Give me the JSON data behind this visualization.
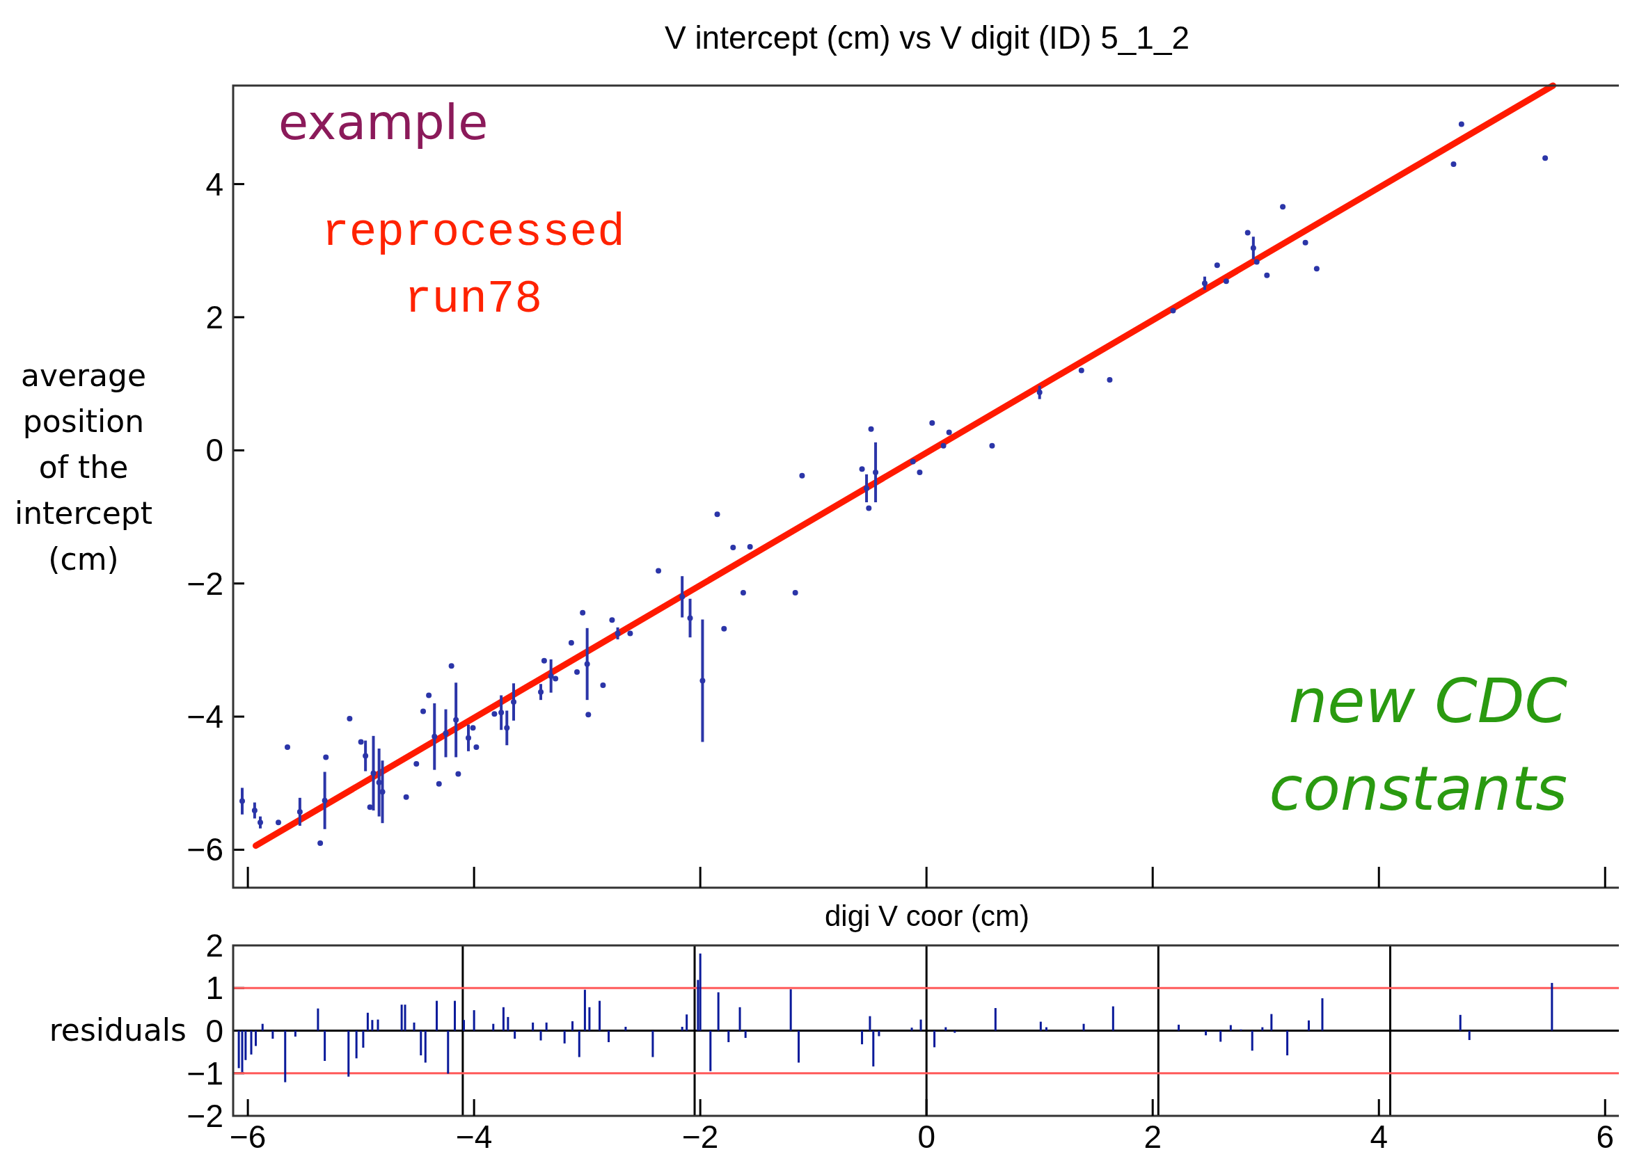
{
  "chart_data": [
    {
      "type": "scatter",
      "title": "V intercept (cm) vs V digit (ID) 5_1_2",
      "xlabel": "digi V coor (cm)",
      "ylabel": "average position of the intercept (cm)",
      "xlim": [
        -6.13,
        6.14
      ],
      "ylim": [
        -6.57,
        5.48
      ],
      "xticks": [
        {
          "value": -6,
          "label": null
        },
        {
          "value": -4,
          "label": null
        },
        {
          "value": -2,
          "label": null
        },
        {
          "value": 0,
          "label": null
        },
        {
          "value": 2,
          "label": null
        },
        {
          "value": 4,
          "label": null
        },
        {
          "value": 6,
          "label": null
        }
      ],
      "yticks": [
        -6,
        -4,
        -2,
        0,
        2,
        4
      ],
      "tick_labels": "y",
      "annotations": [
        "example",
        "reprocessed\nrun78",
        "new CDC\nconstants"
      ],
      "series": [
        {
          "type": "scatter",
          "color": "#2b35a8",
          "x": [
            -6.05,
            -5.94,
            -5.89,
            -5.73,
            -5.65,
            -5.54,
            -5.36,
            -5.32,
            -5.31,
            -5.1,
            -5.0,
            -4.96,
            -4.92,
            -4.89,
            -4.84,
            -4.81,
            -4.6,
            -4.51,
            -4.45,
            -4.4,
            -4.35,
            -4.31,
            -4.25,
            -4.2,
            -4.16,
            -4.14,
            -4.05,
            -4.01,
            -3.98,
            -3.82,
            -3.76,
            -3.71,
            -3.65,
            -3.41,
            -3.38,
            -3.32,
            -3.28,
            -3.14,
            -3.09,
            -3.04,
            -3.0,
            -2.99,
            -2.86,
            -2.78,
            -2.73,
            -2.62,
            -2.37,
            -2.16,
            -2.09,
            -1.98,
            -1.85,
            -1.79,
            -1.71,
            -1.56,
            -1.62,
            -1.16,
            -1.1,
            -0.57,
            -0.53,
            -0.51,
            -0.49,
            -0.45,
            -0.12,
            -0.06,
            0.05,
            0.15,
            0.2,
            0.58,
            1.0,
            1.37,
            1.62,
            2.18,
            2.46,
            2.57,
            2.65,
            2.84,
            2.89,
            2.92,
            3.01,
            3.15,
            3.35,
            3.45,
            4.66,
            4.73,
            5.47
          ],
          "values": [
            -5.27,
            -5.41,
            -5.59,
            -5.59,
            -4.46,
            -5.43,
            -5.9,
            -5.26,
            -4.61,
            -4.03,
            -4.38,
            -4.59,
            -5.36,
            -4.85,
            -4.99,
            -5.13,
            -5.21,
            -4.71,
            -3.92,
            -3.68,
            -4.3,
            -5.01,
            -4.25,
            -3.24,
            -4.05,
            -4.86,
            -4.32,
            -4.17,
            -4.46,
            -3.96,
            -3.94,
            -4.17,
            -3.78,
            -3.63,
            -3.16,
            -3.39,
            -3.43,
            -2.89,
            -3.33,
            -2.44,
            -3.21,
            -3.97,
            -3.53,
            -2.55,
            -2.75,
            -2.75,
            -1.81,
            -2.2,
            -2.52,
            -3.46,
            -0.96,
            -2.68,
            -1.46,
            -1.45,
            -2.14,
            -2.14,
            -0.38,
            -0.28,
            -0.57,
            -0.87,
            0.32,
            -0.33,
            -0.17,
            -0.33,
            0.41,
            0.07,
            0.27,
            0.07,
            0.87,
            1.2,
            1.06,
            2.1,
            2.51,
            2.78,
            2.54,
            3.27,
            3.04,
            2.83,
            2.63,
            3.66,
            3.12,
            2.73,
            4.3,
            4.9,
            4.39
          ],
          "errors": [
            0.2,
            0.12,
            0.09,
            null,
            null,
            0.21,
            null,
            0.43,
            null,
            null,
            null,
            0.23,
            null,
            0.56,
            0.51,
            0.47,
            null,
            null,
            null,
            null,
            0.5,
            null,
            0.36,
            null,
            0.56,
            null,
            0.2,
            null,
            null,
            null,
            0.26,
            0.26,
            0.28,
            0.12,
            null,
            0.25,
            null,
            null,
            null,
            null,
            0.54,
            null,
            null,
            null,
            0.09,
            null,
            null,
            0.31,
            0.29,
            0.92,
            null,
            null,
            null,
            null,
            null,
            null,
            null,
            null,
            0.21,
            null,
            null,
            0.45,
            null,
            null,
            null,
            null,
            null,
            null,
            0.1,
            null,
            null,
            null,
            0.1,
            null,
            null,
            null,
            0.17,
            null,
            null,
            null,
            null,
            null,
            null,
            null,
            null
          ]
        },
        {
          "type": "line",
          "color": "#ff1a00",
          "x": [
            -5.93,
            5.54
          ],
          "values": [
            -5.94,
            5.48
          ]
        }
      ]
    },
    {
      "type": "bar",
      "ylabel": "residuals",
      "color": "#0a1a9a",
      "xlim": [
        -6.13,
        6.14
      ],
      "ylim": [
        -2,
        2
      ],
      "xticks": [
        -6,
        -4,
        -2,
        0,
        2,
        4,
        6
      ],
      "yticks": [
        -2,
        -1,
        0,
        1,
        2
      ],
      "ref_lines": [
        {
          "axis": "x",
          "value": -4.1,
          "color": "#000000"
        },
        {
          "axis": "x",
          "value": -2.05,
          "color": "#000000"
        },
        {
          "axis": "x",
          "value": 0,
          "color": "#000000"
        },
        {
          "axis": "x",
          "value": 2.05,
          "color": "#000000"
        },
        {
          "axis": "x",
          "value": 4.1,
          "color": "#000000"
        },
        {
          "axis": "y",
          "value": 1,
          "color": "#ff5a5a"
        },
        {
          "axis": "y",
          "value": -1,
          "color": "#ff5a5a"
        },
        {
          "axis": "y",
          "value": 0,
          "color": "#000000"
        }
      ],
      "x": [
        -6.08,
        -6.05,
        -6.02,
        -5.97,
        -5.93,
        -5.87,
        -5.78,
        -5.67,
        -5.58,
        -5.38,
        -5.32,
        -5.11,
        -5.04,
        -4.98,
        -4.94,
        -4.9,
        -4.85,
        -4.64,
        -4.61,
        -4.53,
        -4.47,
        -4.43,
        -4.33,
        -4.23,
        -4.17,
        -4.09,
        -4.0,
        -3.83,
        -3.74,
        -3.7,
        -3.64,
        -3.48,
        -3.41,
        -3.36,
        -3.2,
        -3.13,
        -3.07,
        -3.02,
        -2.98,
        -2.89,
        -2.81,
        -2.66,
        -2.42,
        -2.16,
        -2.12,
        -2.02,
        -2.0,
        -1.91,
        -1.84,
        -1.75,
        -1.65,
        -1.6,
        -1.2,
        -1.13,
        -0.57,
        -0.5,
        -0.47,
        -0.42,
        -0.13,
        -0.05,
        0.07,
        0.17,
        0.25,
        0.61,
        1.01,
        1.06,
        1.39,
        1.65,
        2.23,
        2.47,
        2.6,
        2.69,
        2.78,
        2.88,
        2.97,
        3.05,
        3.19,
        3.38,
        3.5,
        4.72,
        4.8,
        5.53
      ],
      "values": [
        -0.88,
        -0.97,
        -0.69,
        -0.56,
        -0.36,
        0.16,
        -0.19,
        -1.21,
        -0.14,
        0.52,
        -0.71,
        -1.08,
        -0.65,
        -0.4,
        0.42,
        0.25,
        0.26,
        0.61,
        0.61,
        0.19,
        -0.58,
        -0.75,
        0.7,
        -1.01,
        0.7,
        0.25,
        0.48,
        0.16,
        0.55,
        0.32,
        -0.19,
        0.19,
        -0.23,
        0.19,
        -0.3,
        0.22,
        -0.62,
        0.96,
        0.55,
        0.7,
        -0.27,
        0.09,
        -0.62,
        0.09,
        0.38,
        1.19,
        1.81,
        -0.95,
        0.9,
        -0.27,
        0.55,
        -0.17,
        0.97,
        -0.75,
        -0.32,
        0.34,
        -0.84,
        -0.13,
        0.07,
        0.26,
        -0.39,
        0.08,
        -0.05,
        0.53,
        0.21,
        0.08,
        0.16,
        0.57,
        0.14,
        -0.11,
        -0.26,
        0.13,
        0.03,
        -0.47,
        0.08,
        0.39,
        -0.58,
        0.24,
        0.76,
        0.37,
        -0.22,
        1.12
      ]
    }
  ]
}
